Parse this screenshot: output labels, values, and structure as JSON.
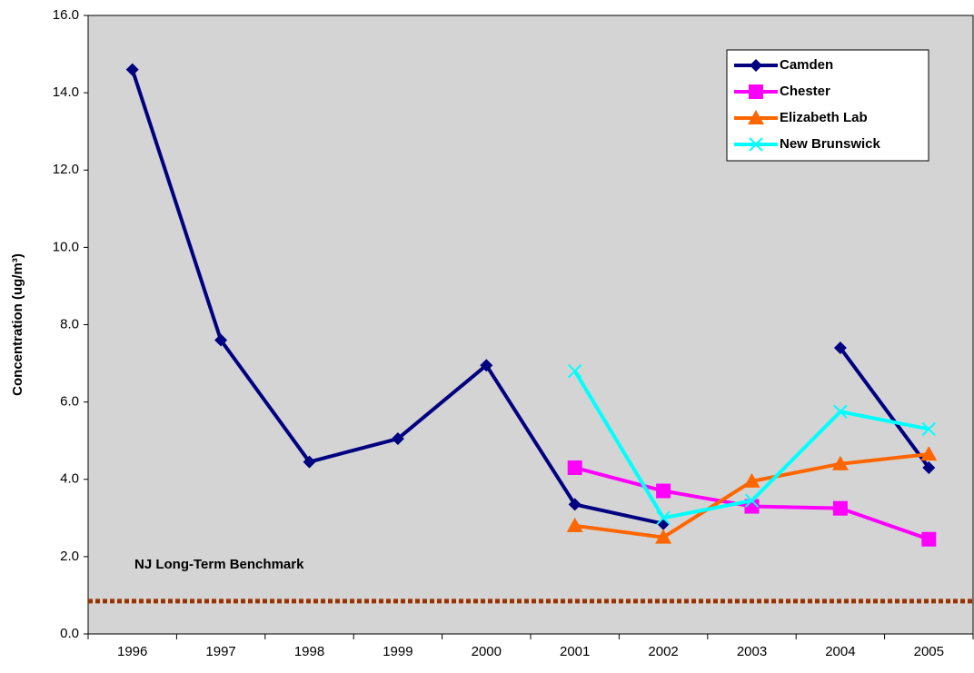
{
  "chart_data": {
    "type": "line",
    "y_label": "Concentration (ug/m³)",
    "categories": [
      "1996",
      "1997",
      "1998",
      "1999",
      "2000",
      "2001",
      "2002",
      "2003",
      "2004",
      "2005"
    ],
    "series": [
      {
        "name": "Camden",
        "color": "#000080",
        "marker": "diamond",
        "values": [
          14.6,
          7.6,
          4.45,
          5.05,
          6.95,
          3.35,
          2.85,
          null,
          7.4,
          4.3
        ]
      },
      {
        "name": "Chester",
        "color": "#ff00ff",
        "marker": "square",
        "values": [
          null,
          null,
          null,
          null,
          null,
          4.3,
          3.7,
          3.3,
          3.25,
          2.45
        ]
      },
      {
        "name": "Elizabeth Lab",
        "color": "#ff6600",
        "marker": "triangle",
        "values": [
          null,
          null,
          null,
          null,
          null,
          2.8,
          2.5,
          3.95,
          4.4,
          4.65
        ]
      },
      {
        "name": "New Brunswick",
        "color": "#00ffff",
        "marker": "x",
        "values": [
          null,
          null,
          null,
          null,
          null,
          6.8,
          3.0,
          3.45,
          5.75,
          5.3
        ]
      }
    ],
    "benchmark": {
      "label": "NJ Long-Term Benchmark",
      "value": 0.85,
      "color": "#993300"
    },
    "ylim": [
      0,
      16
    ],
    "yticks": [
      {
        "value": 0,
        "label": "0.0"
      },
      {
        "value": 2,
        "label": "2.0"
      },
      {
        "value": 4,
        "label": "4.0"
      },
      {
        "value": 6,
        "label": "6.0"
      },
      {
        "value": 8,
        "label": "8.0"
      },
      {
        "value": 10,
        "label": "10.0"
      },
      {
        "value": 12,
        "label": "12.0"
      },
      {
        "value": 14,
        "label": "14.0"
      },
      {
        "value": 16,
        "label": "16.0"
      }
    ],
    "legend": "top-right",
    "grid": false
  }
}
